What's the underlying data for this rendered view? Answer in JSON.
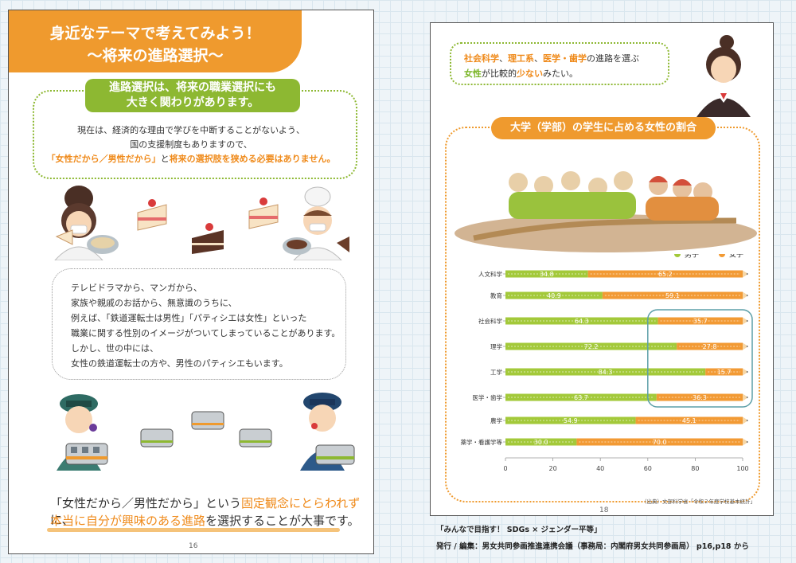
{
  "left_page": {
    "banner": {
      "line1": "身近なテーマで考えてみよう！",
      "line2": "～将来の進路選択～"
    },
    "section1": {
      "heading_line1": "進路選択は、将来の職業選択にも",
      "heading_line2": "大きく関わりがあります。",
      "line1": "現在は、経済的な理由で学びを中断することがないよう、",
      "line2": "国の支援制度もありますので、",
      "line3_highlight": "「女性だから／男性だから」",
      "line3_mid": "と",
      "line3_highlight2": "将来の選択肢を狭める必要はありません。"
    },
    "section2": {
      "lines": [
        "テレビドラマから、マンガから、",
        "家族や親戚のお話から、無意識のうちに、",
        "例えば、「鉄道運転士は男性」「パティシエは女性」といった",
        "職業に関する性別のイメージがついてしまっていることがあります。",
        "しかし、世の中には、",
        "女性の鉄道運転士の方や、男性のパティシエもいます。"
      ]
    },
    "conclusion": {
      "line1_a": "「女性だから／男性だから」という",
      "line1_b": "固定観念にとらわれず",
      "line1_c": "に、",
      "line2_a": "本当に自分が興味のある進路",
      "line2_b": "を選択することが大事です。"
    },
    "page_number": "16"
  },
  "right_page": {
    "speech": {
      "l1_a": "社会科学",
      "l1_b": "、",
      "l1_c": "理工系",
      "l1_d": "、",
      "l1_e": "医学・歯学",
      "l1_f": "の進路を選ぶ",
      "l2_a": "女性",
      "l2_b": "が比較的",
      "l2_c": "少ない",
      "l2_d": "みたい。"
    },
    "chart_title": "大学（学部）の学生に占める女性の割合",
    "source": "（出典）文部科学省「令和２年度学校基本統計」",
    "page_number": "18"
  },
  "colors": {
    "male": "#a3c93a",
    "female": "#f29a34",
    "orange_accent": "#ef9a2e",
    "green_accent": "#8db832",
    "highlight_box": "#5c9fa8"
  },
  "chart_data": {
    "type": "bar",
    "orientation": "horizontal",
    "stacked": true,
    "categories": [
      "人文科学",
      "教育",
      "社会科学",
      "理学",
      "工学",
      "医学・歯学",
      "農学",
      "薬学・看護学等"
    ],
    "series": [
      {
        "name": "男子",
        "values": [
          34.8,
          40.9,
          64.3,
          72.2,
          84.3,
          63.7,
          54.9,
          30.0
        ],
        "labels": [
          "34.8",
          "40.9",
          "64.3",
          "72.2",
          "84.3",
          "63.7",
          "54.9",
          "30.0"
        ]
      },
      {
        "name": "女子",
        "values": [
          65.2,
          59.1,
          35.7,
          27.8,
          15.7,
          36.3,
          45.1,
          70.0
        ],
        "labels": [
          "65.2",
          "59.1",
          "35.7",
          "27.8",
          "15.7",
          "36.3",
          "45.1",
          "70.0"
        ]
      }
    ],
    "xlim": [
      0,
      100
    ],
    "xticks": [
      "0",
      "20",
      "40",
      "60",
      "80",
      "100"
    ],
    "legend_position": "top-right",
    "highlight_categories": [
      "社会科学",
      "理学",
      "工学",
      "医学・歯学"
    ],
    "highlight_series": "女子"
  },
  "footer": {
    "line1": "「みんなで目指す！ SDGs × ジェンダー平等」",
    "line2": "発行 / 編集：男女共同参画推進連携会議（事務局：内閣府男女共同参画局） p16,p18 から"
  }
}
